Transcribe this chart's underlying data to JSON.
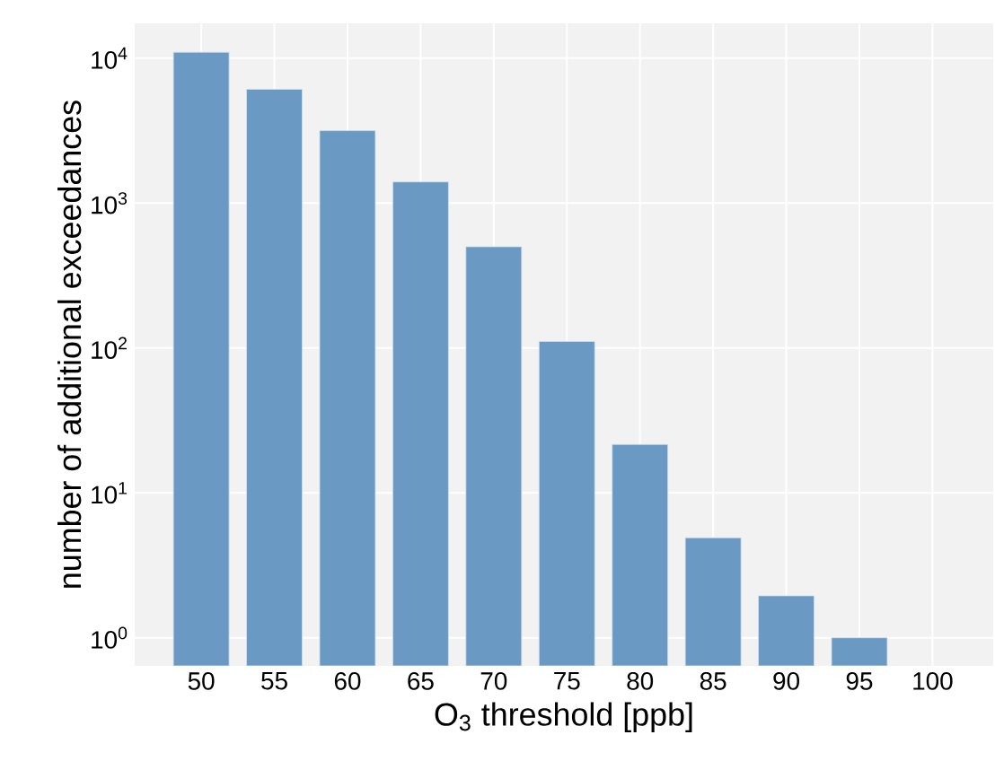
{
  "chart_data": {
    "type": "bar",
    "xlabel": "O$_{3}$ threshold [ppb]",
    "ylabel": "number of additional exceedances",
    "categories": [
      "50",
      "55",
      "60",
      "65",
      "70",
      "75",
      "80",
      "85",
      "90",
      "95",
      "100"
    ],
    "values": [
      11000,
      6100,
      3160,
      1400,
      500,
      111,
      21.6,
      4.9,
      1.95,
      1,
      null
    ],
    "color": "#6a9ac4",
    "log": "y",
    "grid": true,
    "ylim": [
      0.64,
      17400
    ],
    "yticks": [
      {
        "value": 1,
        "label": "10$^{0}$"
      },
      {
        "value": 10,
        "label": "10$^{1}$"
      },
      {
        "value": 100,
        "label": "10$^{2}$"
      },
      {
        "value": 1000,
        "label": "10$^{3}$"
      },
      {
        "value": 10000,
        "label": "10$^{4}$"
      }
    ]
  }
}
